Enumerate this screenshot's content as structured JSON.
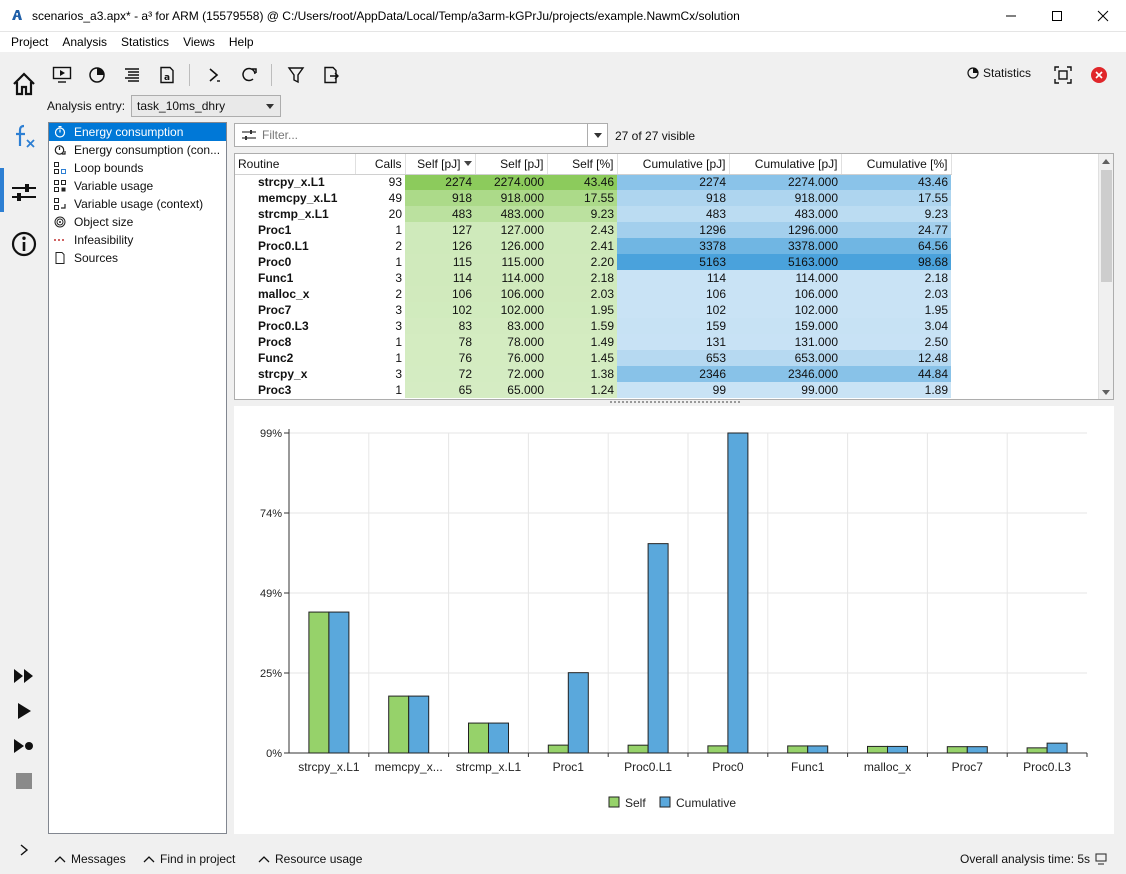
{
  "window": {
    "title": "scenarios_a3.apx* - a³ for ARM (15579558) @ C:/Users/root/AppData/Local/Temp/a3arm-kGPrJu/projects/example.NawmCx/solution"
  },
  "menu": [
    "Project",
    "Analysis",
    "Statistics",
    "Views",
    "Help"
  ],
  "toolbar": {
    "statistics_label": "Statistics"
  },
  "analysis_entry": {
    "label": "Analysis entry:",
    "value": "task_10ms_dhry"
  },
  "tree": [
    {
      "label": "Energy consumption",
      "icon": "stopwatch-icon",
      "selected": true
    },
    {
      "label": "Energy consumption (con...",
      "icon": "stopwatch-context-icon",
      "selected": false
    },
    {
      "label": "Loop bounds",
      "icon": "loop-grid-icon",
      "selected": false
    },
    {
      "label": "Variable usage",
      "icon": "variable-grid-icon",
      "selected": false
    },
    {
      "label": "Variable usage (context)",
      "icon": "variable-context-icon",
      "selected": false
    },
    {
      "label": "Object size",
      "icon": "target-icon",
      "selected": false
    },
    {
      "label": "Infeasibility",
      "icon": "dashed-line-icon",
      "selected": false
    },
    {
      "label": "Sources",
      "icon": "document-icon",
      "selected": false
    }
  ],
  "filter": {
    "placeholder": "Filter...",
    "visible_text": "27 of 27 visible"
  },
  "table": {
    "columns": [
      "Routine",
      "Calls",
      "Self [pJ]",
      "Self [pJ]",
      "Self [%]",
      "Cumulative [pJ]",
      "Cumulative [pJ]",
      "Cumulative [%]"
    ],
    "rows": [
      {
        "name": "strcpy_x.L1",
        "calls": "93",
        "self": "2274",
        "self_f": "2274.000",
        "self_p": "43.46",
        "cum": "2274",
        "cum_f": "2274.000",
        "cum_p": "43.46"
      },
      {
        "name": "memcpy_x.L1",
        "calls": "49",
        "self": "918",
        "self_f": "918.000",
        "self_p": "17.55",
        "cum": "918",
        "cum_f": "918.000",
        "cum_p": "17.55"
      },
      {
        "name": "strcmp_x.L1",
        "calls": "20",
        "self": "483",
        "self_f": "483.000",
        "self_p": "9.23",
        "cum": "483",
        "cum_f": "483.000",
        "cum_p": "9.23"
      },
      {
        "name": "Proc1",
        "calls": "1",
        "self": "127",
        "self_f": "127.000",
        "self_p": "2.43",
        "cum": "1296",
        "cum_f": "1296.000",
        "cum_p": "24.77"
      },
      {
        "name": "Proc0.L1",
        "calls": "2",
        "self": "126",
        "self_f": "126.000",
        "self_p": "2.41",
        "cum": "3378",
        "cum_f": "3378.000",
        "cum_p": "64.56"
      },
      {
        "name": "Proc0",
        "calls": "1",
        "self": "115",
        "self_f": "115.000",
        "self_p": "2.20",
        "cum": "5163",
        "cum_f": "5163.000",
        "cum_p": "98.68"
      },
      {
        "name": "Func1",
        "calls": "3",
        "self": "114",
        "self_f": "114.000",
        "self_p": "2.18",
        "cum": "114",
        "cum_f": "114.000",
        "cum_p": "2.18"
      },
      {
        "name": "malloc_x",
        "calls": "2",
        "self": "106",
        "self_f": "106.000",
        "self_p": "2.03",
        "cum": "106",
        "cum_f": "106.000",
        "cum_p": "2.03"
      },
      {
        "name": "Proc7",
        "calls": "3",
        "self": "102",
        "self_f": "102.000",
        "self_p": "1.95",
        "cum": "102",
        "cum_f": "102.000",
        "cum_p": "1.95"
      },
      {
        "name": "Proc0.L3",
        "calls": "3",
        "self": "83",
        "self_f": "83.000",
        "self_p": "1.59",
        "cum": "159",
        "cum_f": "159.000",
        "cum_p": "3.04"
      },
      {
        "name": "Proc8",
        "calls": "1",
        "self": "78",
        "self_f": "78.000",
        "self_p": "1.49",
        "cum": "131",
        "cum_f": "131.000",
        "cum_p": "2.50"
      },
      {
        "name": "Func2",
        "calls": "1",
        "self": "76",
        "self_f": "76.000",
        "self_p": "1.45",
        "cum": "653",
        "cum_f": "653.000",
        "cum_p": "12.48"
      },
      {
        "name": "strcpy_x",
        "calls": "3",
        "self": "72",
        "self_f": "72.000",
        "self_p": "1.38",
        "cum": "2346",
        "cum_f": "2346.000",
        "cum_p": "44.84"
      },
      {
        "name": "Proc3",
        "calls": "1",
        "self": "65",
        "self_f": "65.000",
        "self_p": "1.24",
        "cum": "99",
        "cum_f": "99.000",
        "cum_p": "1.89"
      }
    ]
  },
  "chart_data": {
    "type": "bar",
    "categories": [
      "strcpy_x.L1",
      "memcpy_x...",
      "strcmp_x.L1",
      "Proc1",
      "Proc0.L1",
      "Proc0",
      "Func1",
      "malloc_x",
      "Proc7",
      "Proc0.L3"
    ],
    "series": [
      {
        "name": "Self",
        "color": "#96d26a",
        "values": [
          43.46,
          17.55,
          9.23,
          2.43,
          2.41,
          2.2,
          2.18,
          2.03,
          1.95,
          1.59
        ]
      },
      {
        "name": "Cumulative",
        "color": "#5aa8dc",
        "values": [
          43.46,
          17.55,
          9.23,
          24.77,
          64.56,
          98.68,
          2.18,
          2.03,
          1.95,
          3.04
        ]
      }
    ],
    "yticks": [
      "0%",
      "25%",
      "49%",
      "74%",
      "99%"
    ],
    "ylim": [
      0,
      98.68
    ],
    "legend": "bottom-center",
    "grid": true
  },
  "statusbar": {
    "messages": "Messages",
    "find": "Find in project",
    "resources": "Resource usage",
    "time": "Overall analysis time: 5s"
  },
  "colors": {
    "accent": "#0078d7",
    "self_max": "#8ccb5c",
    "self_min": "#e4f3d8",
    "cum_max": "#4aa2dc",
    "cum_min": "#cfe6f6"
  }
}
